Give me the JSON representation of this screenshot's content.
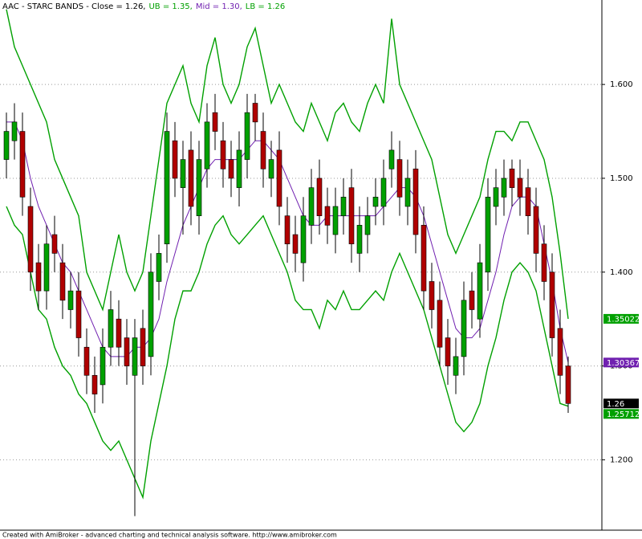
{
  "chart_data": {
    "type": "candlestick",
    "title": "AAC - STARC BANDS - Close = 1.26,",
    "ylim": [
      1.125,
      1.69
    ],
    "yticks": [
      {
        "value": 1.2,
        "label": "1.200"
      },
      {
        "value": 1.3,
        "label": "1.300"
      },
      {
        "value": 1.4,
        "label": "1.400"
      },
      {
        "value": 1.5,
        "label": "1.500"
      },
      {
        "value": 1.6,
        "label": "1.600"
      }
    ],
    "grid": true,
    "candles": {
      "up_color": "#00a000",
      "down_color": "#b00000",
      "tag": "1.26",
      "tag_value": 1.26,
      "tag_color": "#000000",
      "open": [
        1.52,
        1.54,
        1.55,
        1.47,
        1.41,
        1.38,
        1.44,
        1.41,
        1.36,
        1.38,
        1.32,
        1.29,
        1.28,
        1.32,
        1.35,
        1.33,
        1.29,
        1.34,
        1.31,
        1.39,
        1.43,
        1.54,
        1.49,
        1.53,
        1.46,
        1.51,
        1.57,
        1.54,
        1.52,
        1.49,
        1.52,
        1.58,
        1.55,
        1.5,
        1.53,
        1.46,
        1.44,
        1.41,
        1.45,
        1.5,
        1.47,
        1.44,
        1.46,
        1.49,
        1.42,
        1.44,
        1.47,
        1.47,
        1.51,
        1.52,
        1.47,
        1.51,
        1.45,
        1.39,
        1.37,
        1.33,
        1.29,
        1.31,
        1.38,
        1.35,
        1.4,
        1.47,
        1.48,
        1.51,
        1.5,
        1.49,
        1.47,
        1.43,
        1.4,
        1.34,
        1.3
      ],
      "high": [
        1.57,
        1.58,
        1.57,
        1.49,
        1.43,
        1.45,
        1.46,
        1.43,
        1.4,
        1.4,
        1.34,
        1.31,
        1.34,
        1.38,
        1.37,
        1.35,
        1.35,
        1.36,
        1.42,
        1.44,
        1.57,
        1.56,
        1.54,
        1.55,
        1.54,
        1.58,
        1.59,
        1.56,
        1.54,
        1.55,
        1.59,
        1.59,
        1.57,
        1.54,
        1.55,
        1.48,
        1.46,
        1.48,
        1.51,
        1.52,
        1.49,
        1.49,
        1.5,
        1.51,
        1.47,
        1.48,
        1.5,
        1.52,
        1.55,
        1.54,
        1.52,
        1.53,
        1.47,
        1.41,
        1.39,
        1.35,
        1.33,
        1.39,
        1.4,
        1.43,
        1.5,
        1.51,
        1.52,
        1.52,
        1.52,
        1.51,
        1.49,
        1.45,
        1.42,
        1.36,
        1.31
      ],
      "low": [
        1.5,
        1.52,
        1.46,
        1.38,
        1.36,
        1.36,
        1.4,
        1.35,
        1.34,
        1.31,
        1.27,
        1.25,
        1.26,
        1.3,
        1.3,
        1.28,
        1.14,
        1.28,
        1.29,
        1.37,
        1.41,
        1.48,
        1.44,
        1.45,
        1.44,
        1.49,
        1.53,
        1.49,
        1.48,
        1.47,
        1.5,
        1.54,
        1.49,
        1.48,
        1.45,
        1.41,
        1.4,
        1.39,
        1.43,
        1.44,
        1.43,
        1.42,
        1.44,
        1.41,
        1.4,
        1.42,
        1.45,
        1.45,
        1.49,
        1.46,
        1.45,
        1.42,
        1.36,
        1.34,
        1.3,
        1.28,
        1.27,
        1.29,
        1.34,
        1.33,
        1.38,
        1.45,
        1.46,
        1.47,
        1.46,
        1.44,
        1.4,
        1.37,
        1.31,
        1.27,
        1.25
      ],
      "close": [
        1.55,
        1.56,
        1.48,
        1.4,
        1.38,
        1.43,
        1.42,
        1.37,
        1.38,
        1.33,
        1.29,
        1.27,
        1.32,
        1.36,
        1.32,
        1.3,
        1.33,
        1.3,
        1.4,
        1.42,
        1.55,
        1.5,
        1.52,
        1.47,
        1.52,
        1.56,
        1.55,
        1.51,
        1.5,
        1.53,
        1.57,
        1.56,
        1.51,
        1.52,
        1.47,
        1.43,
        1.42,
        1.46,
        1.49,
        1.46,
        1.45,
        1.47,
        1.48,
        1.43,
        1.45,
        1.46,
        1.48,
        1.5,
        1.53,
        1.48,
        1.5,
        1.44,
        1.38,
        1.36,
        1.32,
        1.3,
        1.31,
        1.37,
        1.36,
        1.41,
        1.48,
        1.49,
        1.5,
        1.49,
        1.48,
        1.46,
        1.42,
        1.39,
        1.33,
        1.29,
        1.26
      ]
    },
    "series": [
      {
        "label": "UB = 1.35,",
        "color": "#00a000",
        "tag": "1.35022",
        "values": [
          1.68,
          1.64,
          1.62,
          1.6,
          1.58,
          1.56,
          1.52,
          1.5,
          1.48,
          1.46,
          1.4,
          1.38,
          1.36,
          1.4,
          1.44,
          1.4,
          1.38,
          1.4,
          1.46,
          1.52,
          1.58,
          1.6,
          1.62,
          1.58,
          1.56,
          1.62,
          1.65,
          1.6,
          1.58,
          1.6,
          1.64,
          1.66,
          1.62,
          1.58,
          1.6,
          1.58,
          1.56,
          1.55,
          1.58,
          1.56,
          1.54,
          1.57,
          1.58,
          1.56,
          1.55,
          1.58,
          1.6,
          1.58,
          1.67,
          1.6,
          1.58,
          1.56,
          1.54,
          1.52,
          1.48,
          1.44,
          1.42,
          1.44,
          1.46,
          1.48,
          1.52,
          1.55,
          1.55,
          1.54,
          1.56,
          1.56,
          1.54,
          1.52,
          1.48,
          1.42,
          1.35022
        ]
      },
      {
        "label": "Mid = 1.30,",
        "color": "#7020b0",
        "tag": "1.30367",
        "values": [
          1.56,
          1.56,
          1.54,
          1.5,
          1.47,
          1.45,
          1.43,
          1.41,
          1.4,
          1.38,
          1.36,
          1.34,
          1.32,
          1.31,
          1.31,
          1.31,
          1.32,
          1.32,
          1.33,
          1.35,
          1.39,
          1.42,
          1.45,
          1.47,
          1.49,
          1.51,
          1.52,
          1.52,
          1.52,
          1.52,
          1.53,
          1.54,
          1.54,
          1.53,
          1.52,
          1.5,
          1.48,
          1.46,
          1.45,
          1.45,
          1.46,
          1.46,
          1.46,
          1.46,
          1.46,
          1.46,
          1.46,
          1.47,
          1.48,
          1.49,
          1.49,
          1.48,
          1.46,
          1.43,
          1.4,
          1.37,
          1.34,
          1.33,
          1.33,
          1.34,
          1.37,
          1.4,
          1.44,
          1.47,
          1.48,
          1.48,
          1.47,
          1.43,
          1.39,
          1.34,
          1.30367
        ]
      },
      {
        "label": "LB = 1.26",
        "color": "#00a000",
        "tag": "1.25712",
        "values": [
          1.47,
          1.45,
          1.44,
          1.4,
          1.36,
          1.35,
          1.32,
          1.3,
          1.29,
          1.27,
          1.26,
          1.24,
          1.22,
          1.21,
          1.22,
          1.2,
          1.18,
          1.16,
          1.22,
          1.26,
          1.3,
          1.35,
          1.38,
          1.38,
          1.4,
          1.43,
          1.45,
          1.46,
          1.44,
          1.43,
          1.44,
          1.45,
          1.46,
          1.44,
          1.42,
          1.4,
          1.37,
          1.36,
          1.36,
          1.34,
          1.37,
          1.36,
          1.38,
          1.36,
          1.36,
          1.37,
          1.38,
          1.37,
          1.4,
          1.42,
          1.4,
          1.38,
          1.36,
          1.33,
          1.3,
          1.27,
          1.24,
          1.23,
          1.24,
          1.26,
          1.3,
          1.33,
          1.37,
          1.4,
          1.41,
          1.4,
          1.38,
          1.34,
          1.3,
          1.26,
          1.25712
        ]
      }
    ],
    "footer": "Created with AmiBroker - advanced charting and technical analysis software. http://www.amibroker.com"
  }
}
